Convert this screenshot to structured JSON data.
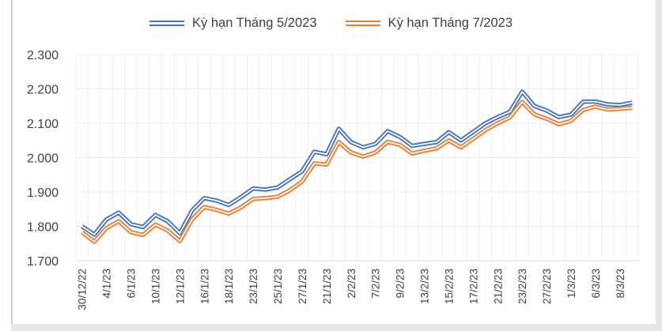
{
  "chart_data": {
    "type": "line",
    "title": "",
    "xlabel": "",
    "ylabel": "",
    "ylim": [
      1.7,
      2.3
    ],
    "yticks": [
      "1.700",
      "1.800",
      "1.900",
      "2.000",
      "2.100",
      "2.200",
      "2.300"
    ],
    "grid": true,
    "legend_position": "top",
    "x_tick_labels": [
      "30/12/22",
      "4/1/23",
      "6/1/23",
      "10/1/23",
      "12/1/23",
      "16/1/23",
      "18/1/23",
      "23/1/23",
      "25/1/23",
      "27/1/23",
      "21/1/23",
      "2/2/23",
      "7/2/23",
      "9/2/23",
      "13/2/23",
      "15/2/23",
      "17/2/23",
      "21/2/23",
      "23/2/23",
      "27/2/23",
      "1/3/23",
      "6/3/23",
      "8/3/23"
    ],
    "series": [
      {
        "name": "Kỳ hạn Tháng 5/2023",
        "color": "#4472c4",
        "values": [
          1.8,
          1.776,
          1.82,
          1.84,
          1.806,
          1.798,
          1.833,
          1.815,
          1.78,
          1.846,
          1.882,
          1.875,
          1.862,
          1.885,
          1.91,
          1.907,
          1.913,
          1.937,
          1.96,
          2.017,
          2.01,
          2.084,
          2.045,
          2.03,
          2.04,
          2.077,
          2.06,
          2.034,
          2.04,
          2.045,
          2.074,
          2.05,
          2.075,
          2.1,
          2.118,
          2.133,
          2.192,
          2.15,
          2.137,
          2.118,
          2.125,
          2.163,
          2.163,
          2.155,
          2.153,
          2.16
        ]
      },
      {
        "name": "Kỳ hạn Tháng 7/2023",
        "color": "#ed7d31",
        "values": [
          1.783,
          1.755,
          1.795,
          1.815,
          1.783,
          1.775,
          1.805,
          1.788,
          1.757,
          1.82,
          1.856,
          1.848,
          1.837,
          1.855,
          1.88,
          1.882,
          1.886,
          1.905,
          1.93,
          1.983,
          1.98,
          2.045,
          2.015,
          2.003,
          2.015,
          2.046,
          2.037,
          2.012,
          2.02,
          2.027,
          2.05,
          2.03,
          2.055,
          2.08,
          2.1,
          2.117,
          2.162,
          2.126,
          2.113,
          2.097,
          2.107,
          2.139,
          2.148,
          2.14,
          2.142,
          2.145
        ]
      }
    ]
  },
  "legend": {
    "items": [
      {
        "label": "Kỳ hạn Tháng 5/2023",
        "color": "#4472c4"
      },
      {
        "label": "Kỳ hạn Tháng 7/2023",
        "color": "#ed7d31"
      }
    ]
  }
}
